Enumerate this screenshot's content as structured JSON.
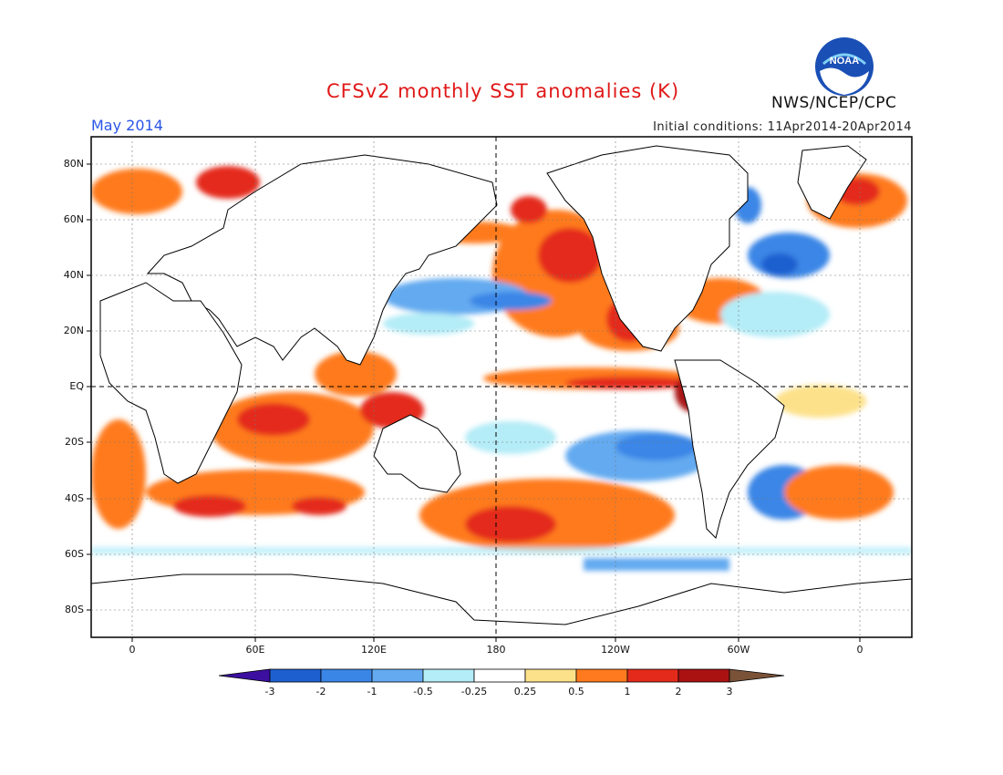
{
  "header": {
    "title": "CFSv2 monthly SST anomalies (K)",
    "period": "May 2014",
    "initial_conditions": "Initial conditions: 11Apr2014-20Apr2014",
    "agency": "NWS/NCEP/CPC",
    "logo_text": "NOAA"
  },
  "map": {
    "projection": "equirectangular",
    "lon_range": [
      -20,
      380
    ],
    "lat_range": [
      -90,
      90
    ],
    "lat_labels": [
      "80N",
      "60N",
      "40N",
      "20N",
      "EQ",
      "20S",
      "40S",
      "60S",
      "80S"
    ],
    "lon_labels": [
      "0",
      "60E",
      "120E",
      "180",
      "120W",
      "60W",
      "0"
    ]
  },
  "colorbar": {
    "labels": [
      "-3",
      "-2",
      "-1",
      "-0.5",
      "-0.25",
      "0.25",
      "0.5",
      "1",
      "2",
      "3"
    ],
    "colors": [
      "#3c0fa0",
      "#1e5fcf",
      "#3a86e6",
      "#64aaf0",
      "#b4ecf7",
      "#ffffff",
      "#fde18a",
      "#ff7a1e",
      "#e42a1a",
      "#aa1212",
      "#7a5238"
    ]
  }
}
